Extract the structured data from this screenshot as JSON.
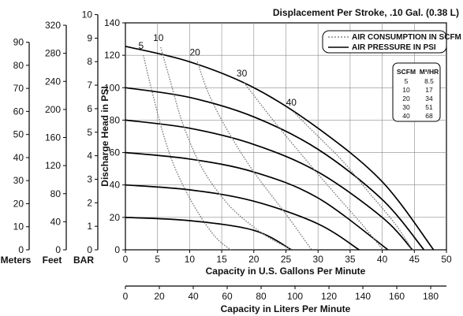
{
  "chart_data": {
    "type": "line",
    "title": "Displacement Per Stroke, .10 Gal. (0.38 L)",
    "xlabel": "Capacity in U.S. Gallons Per Minute",
    "ylabel": "Discharge Head in PSI",
    "xlabel2": "Capacity in Liters Per Minute",
    "xlim": [
      0,
      50
    ],
    "ylim": [
      0,
      140
    ],
    "x_ticks": [
      0,
      5,
      10,
      15,
      20,
      25,
      30,
      35,
      40,
      45,
      50
    ],
    "y_ticks": [
      0,
      20,
      40,
      60,
      80,
      100,
      120,
      140
    ],
    "x2_ticks": [
      0,
      20,
      40,
      60,
      80,
      100,
      120,
      140,
      160,
      180
    ],
    "x2_lim": [
      0,
      189.27
    ],
    "left_axes": [
      {
        "name": "Meters",
        "ticks": [
          0,
          10,
          20,
          30,
          40,
          50,
          60,
          70,
          80,
          90
        ],
        "max": 98.4
      },
      {
        "name": "Feet",
        "ticks": [
          0,
          40,
          80,
          120,
          160,
          200,
          240,
          280,
          320
        ],
        "max": 323.4
      },
      {
        "name": "BAR",
        "ticks": [
          0,
          1,
          2,
          3,
          4,
          5,
          6,
          7,
          8,
          9,
          10
        ],
        "max": 9.65
      }
    ],
    "legend": {
      "position": "top-right",
      "items": [
        {
          "label": "AIR CONSUMPTION IN SCFM",
          "style": "dotted"
        },
        {
          "label": "AIR PRESSURE IN PSI",
          "style": "solid"
        }
      ]
    },
    "conversion_table": {
      "headers": [
        "SCFM",
        "M³/HR"
      ],
      "rows": [
        [
          "5",
          "8.5"
        ],
        [
          "10",
          "17"
        ],
        [
          "20",
          "34"
        ],
        [
          "30",
          "51"
        ],
        [
          "40",
          "68"
        ]
      ]
    },
    "series": [
      {
        "kind": "air_pressure",
        "x": [
          0,
          10,
          20,
          30,
          40,
          48.0
        ],
        "y": [
          125.5,
          116,
          100,
          75,
          42,
          0
        ]
      },
      {
        "kind": "air_pressure",
        "x": [
          0,
          10,
          20,
          30,
          40,
          46.5
        ],
        "y": [
          100,
          94,
          82,
          62,
          31,
          0
        ]
      },
      {
        "kind": "air_pressure",
        "x": [
          0,
          10,
          20,
          30,
          40,
          44.7
        ],
        "y": [
          80,
          75,
          65,
          48,
          20,
          0
        ]
      },
      {
        "kind": "air_pressure",
        "x": [
          0,
          10,
          20,
          30,
          40.9
        ],
        "y": [
          60,
          56,
          48,
          32,
          0
        ]
      },
      {
        "kind": "air_pressure",
        "x": [
          0,
          10,
          20,
          30,
          36.4
        ],
        "y": [
          40,
          37,
          30,
          16,
          0
        ]
      },
      {
        "kind": "air_pressure",
        "x": [
          0,
          10,
          20,
          25.9
        ],
        "y": [
          20,
          18,
          12,
          0
        ]
      },
      {
        "name": "5",
        "kind": "air_consumption",
        "x": [
          2.8,
          4,
          6,
          8,
          11,
          14,
          16.4
        ],
        "y": [
          120,
          100,
          70,
          48,
          25,
          8,
          0
        ]
      },
      {
        "name": "10",
        "kind": "air_consumption",
        "x": [
          5.5,
          7,
          9,
          12,
          16,
          20,
          23,
          26
        ],
        "y": [
          125,
          104,
          77,
          50,
          28,
          14,
          6,
          0
        ]
      },
      {
        "name": "20",
        "kind": "air_consumption",
        "x": [
          11.2,
          13,
          16,
          20,
          25,
          29
        ],
        "y": [
          116,
          96,
          73,
          48,
          22,
          0
        ]
      },
      {
        "name": "30",
        "kind": "air_consumption",
        "x": [
          18.5,
          23,
          28,
          33,
          37,
          40.1
        ],
        "y": [
          103,
          80,
          56,
          33,
          15,
          0
        ]
      },
      {
        "name": "40",
        "kind": "air_consumption",
        "x": [
          26.2,
          30,
          34,
          38,
          42,
          44.7
        ],
        "y": [
          85,
          70,
          54,
          35,
          16,
          0
        ]
      }
    ]
  }
}
